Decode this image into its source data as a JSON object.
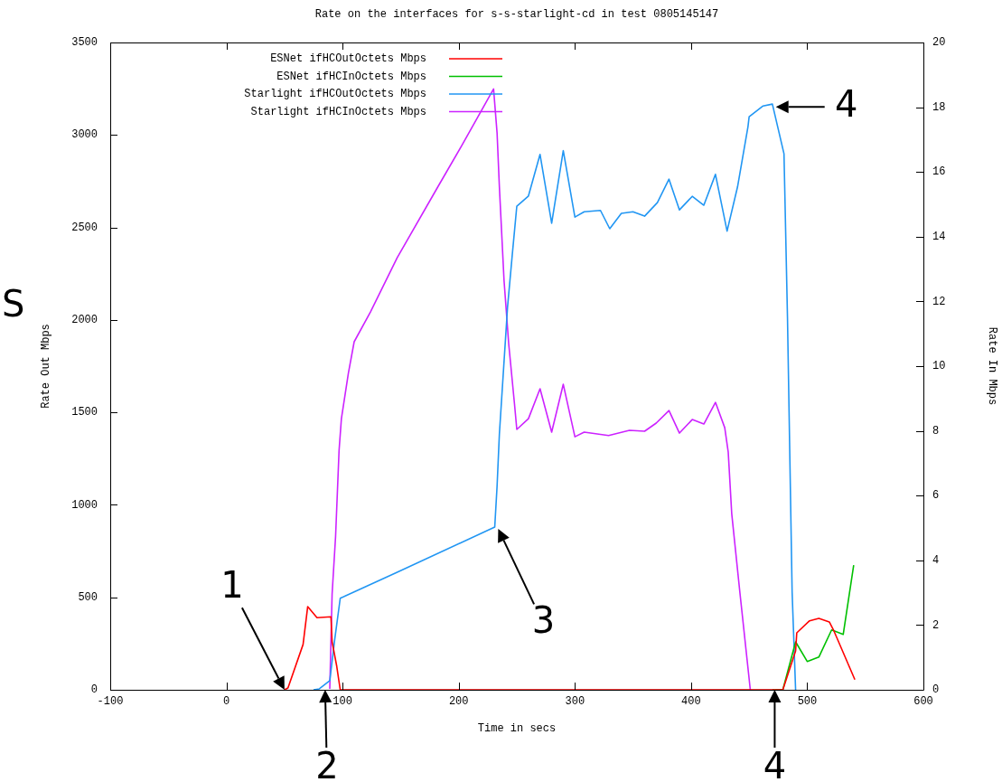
{
  "chart_data": {
    "type": "line",
    "title": "Rate on the interfaces for s-s-starlight-cd in test 0805145147",
    "xlabel": "Time in secs",
    "ylabel": "Rate Out Mbps",
    "y2label": "Rate In Mbps",
    "xlim": [
      -100,
      600
    ],
    "xticks": [
      -100,
      0,
      100,
      200,
      300,
      400,
      500,
      600
    ],
    "ylim": [
      0,
      3500
    ],
    "yticks": [
      0,
      500,
      1000,
      1500,
      2000,
      2500,
      3000,
      3500
    ],
    "y2lim": [
      0,
      20
    ],
    "y2ticks": [
      0,
      2,
      4,
      6,
      8,
      10,
      12,
      14,
      16,
      18,
      20
    ],
    "grid": false,
    "legend": "top left",
    "marker": "none",
    "line_style": "solid",
    "series": [
      {
        "name": "ESNet ifHCOutOctets Mbps",
        "color": "#ff0000",
        "x": [
          50,
          53,
          66,
          70,
          78,
          90,
          91,
          95,
          98,
          470,
          479,
          490,
          491,
          502,
          510,
          519,
          523,
          541
        ],
        "values": [
          0,
          10,
          245,
          450,
          390,
          395,
          260,
          127,
          0,
          0,
          0,
          210,
          308,
          373,
          386,
          367,
          318,
          55
        ]
      },
      {
        "name": "ESNet ifHCInOctets Mbps",
        "color": "#00c000",
        "x": [
          470,
          479,
          490,
          500,
          510,
          521,
          531,
          540
        ],
        "values": [
          0,
          0,
          259,
          153,
          177,
          324,
          300,
          674
        ]
      },
      {
        "name": "Starlight ifHCOutOctets Mbps",
        "color": "#2196f3",
        "x": [
          75,
          80,
          89,
          93,
          98,
          101,
          147,
          231,
          233,
          235,
          242,
          246,
          250,
          260,
          270,
          280,
          290,
          300,
          308,
          322,
          330,
          340,
          350,
          360,
          371,
          381,
          390,
          401,
          411,
          421,
          431,
          440,
          449,
          450,
          462,
          470,
          480,
          483,
          487,
          490
        ],
        "values": [
          0,
          5,
          49,
          260,
          495,
          503,
          635,
          880,
          1100,
          1383,
          2067,
          2346,
          2615,
          2670,
          2895,
          2523,
          2915,
          2556,
          2585,
          2592,
          2493,
          2576,
          2585,
          2561,
          2634,
          2761,
          2595,
          2668,
          2620,
          2787,
          2480,
          2719,
          3045,
          3099,
          3157,
          3167,
          2898,
          2014,
          528,
          0
        ]
      },
      {
        "name": "Starlight ifHCInOctets Mbps",
        "color": "#cc22ff",
        "x": [
          89,
          91,
          94,
          97,
          99,
          105,
          110,
          124,
          147,
          182,
          203,
          230,
          233,
          235,
          239,
          243,
          248,
          250,
          260,
          270,
          280,
          290,
          300,
          308,
          329,
          347,
          360,
          370,
          381,
          390,
          401,
          411,
          421,
          429,
          432,
          435,
          442,
          451
        ],
        "values": [
          5,
          518,
          830,
          1295,
          1466,
          1711,
          1882,
          2043,
          2336,
          2719,
          2947,
          3249,
          3012,
          2719,
          2214,
          1872,
          1546,
          1408,
          1466,
          1628,
          1393,
          1652,
          1368,
          1393,
          1375,
          1403,
          1398,
          1442,
          1510,
          1388,
          1461,
          1437,
          1554,
          1417,
          1285,
          953,
          528,
          0
        ]
      }
    ],
    "annotations": [
      {
        "text": "1",
        "x": 50,
        "y": 0
      },
      {
        "text": "2",
        "x": 85,
        "y": 0
      },
      {
        "text": "3",
        "x": 234,
        "y": 870
      },
      {
        "text": "4",
        "x": 473,
        "y": 3152
      },
      {
        "text": "4",
        "x": 472,
        "y": 0
      },
      "S"
    ]
  }
}
